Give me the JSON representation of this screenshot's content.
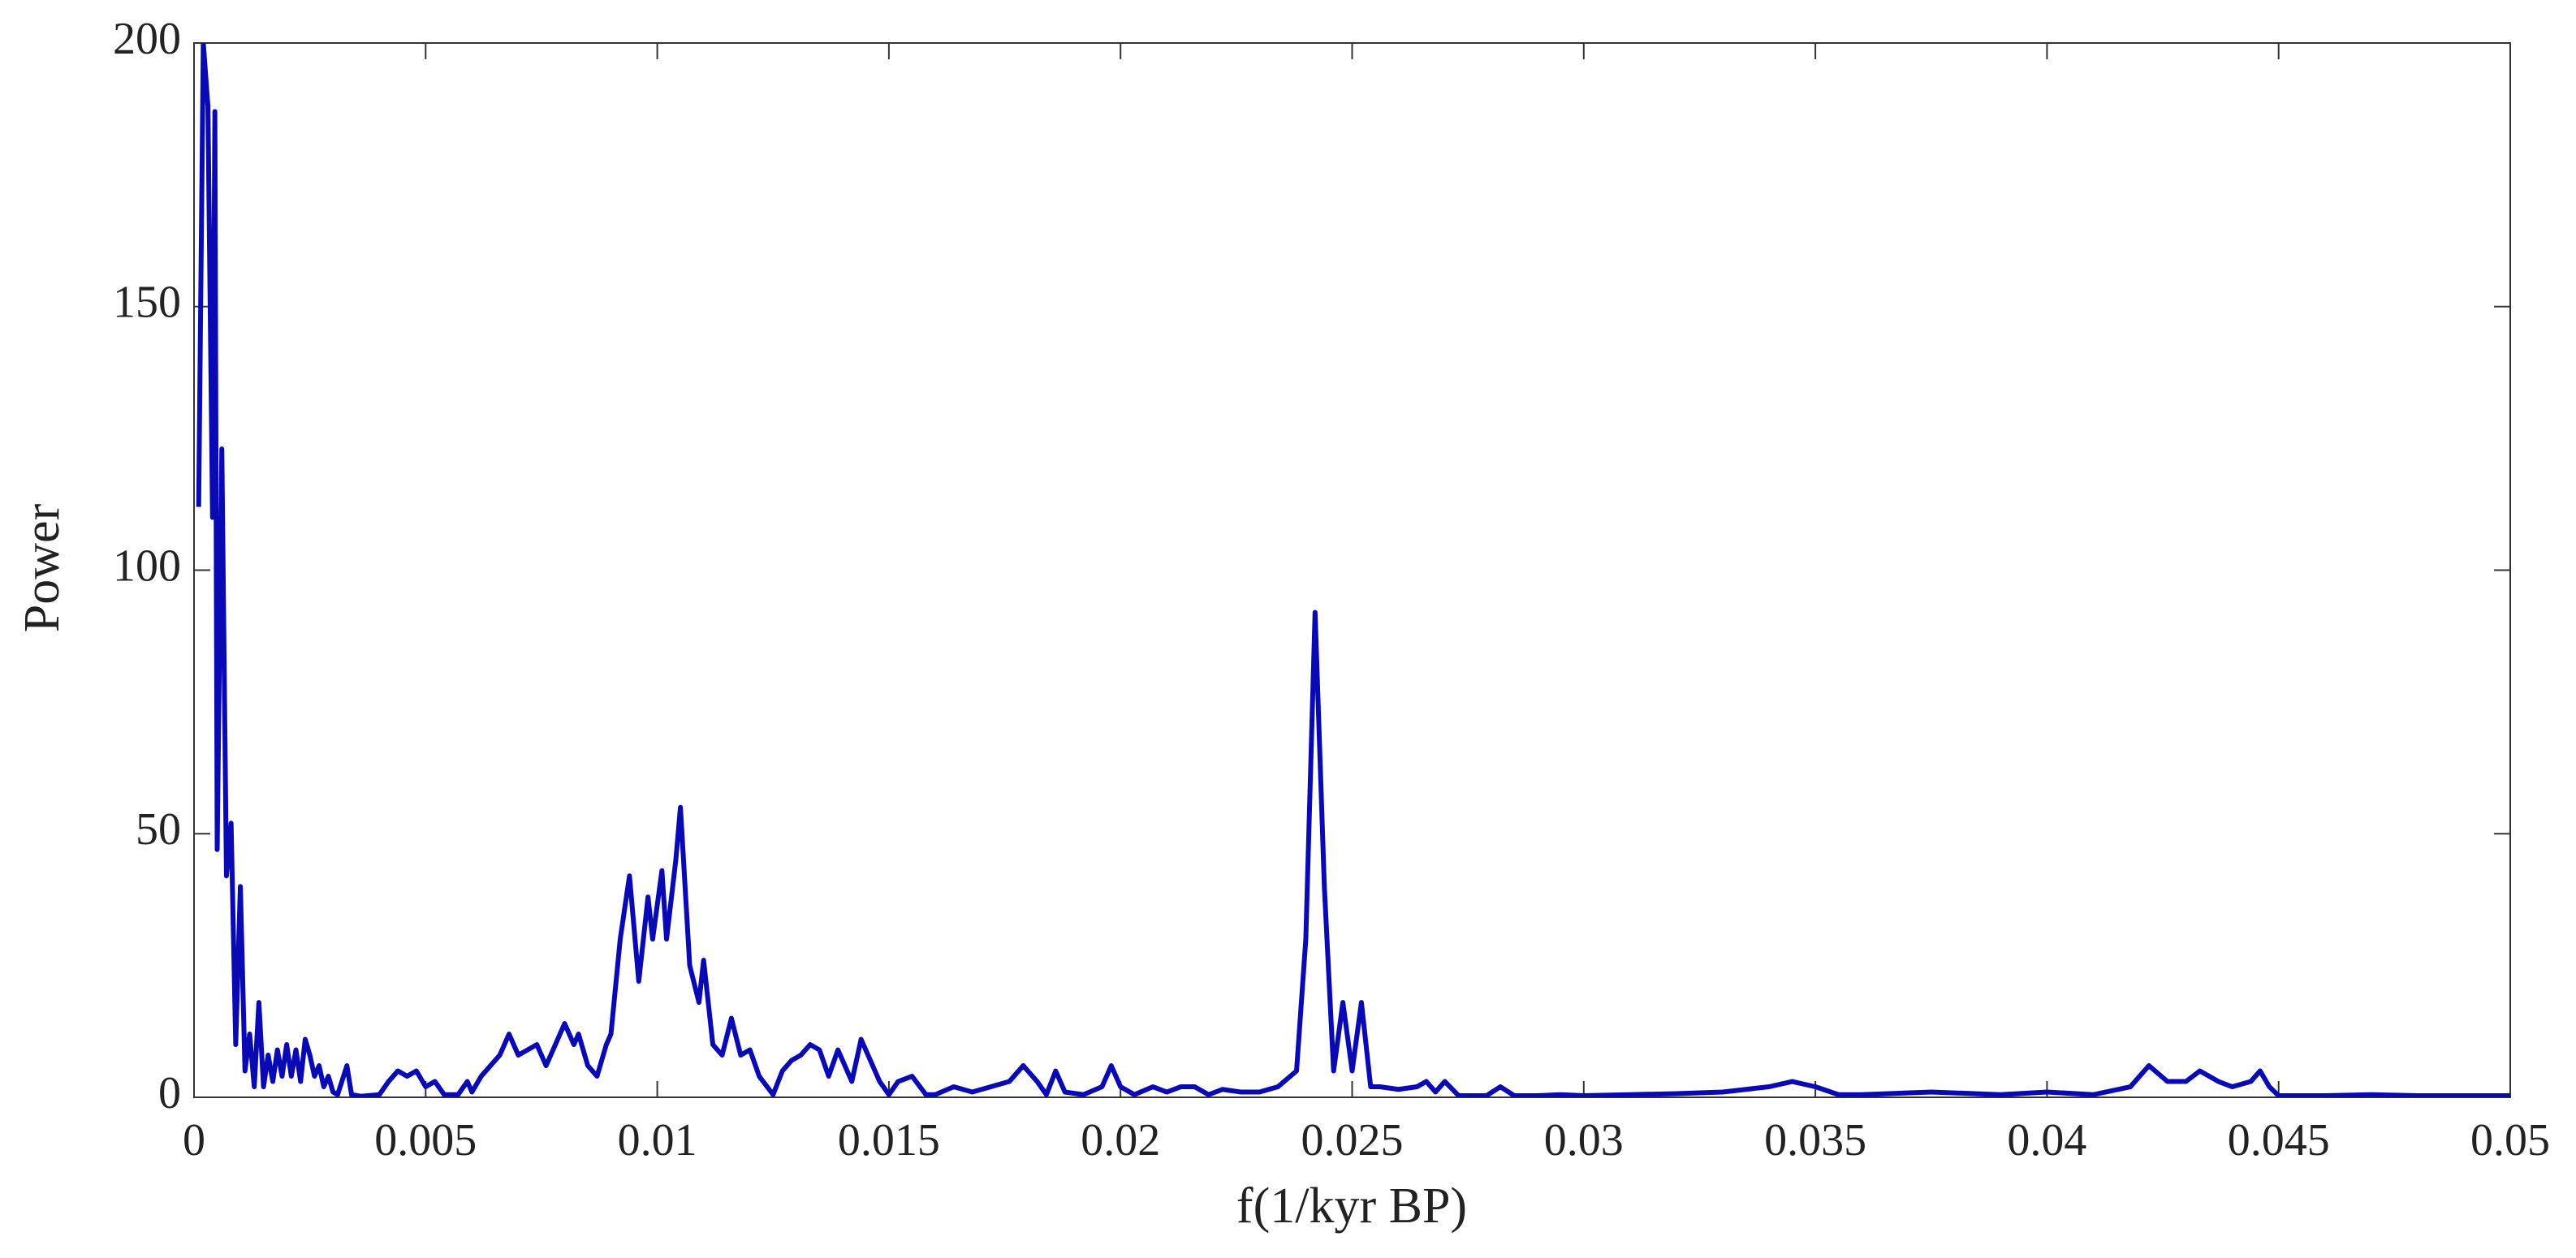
{
  "chart_data": {
    "type": "line",
    "xlabel": "f(1/kyr BP)",
    "ylabel": "Power",
    "color": "#0a0ab4",
    "xlim": [
      0,
      0.05
    ],
    "ylim": [
      0,
      200
    ],
    "xticks": [
      0,
      0.005,
      0.01,
      0.015,
      0.02,
      0.025,
      0.03,
      0.035,
      0.04,
      0.045,
      0.05
    ],
    "yticks": [
      0,
      50,
      100,
      150,
      200
    ],
    "x": [
      0.0001,
      0.0002,
      0.0003,
      0.0004,
      0.00045,
      0.0005,
      0.0006,
      0.0007,
      0.0008,
      0.0009,
      0.001,
      0.0011,
      0.0012,
      0.0013,
      0.0014,
      0.0015,
      0.0016,
      0.0017,
      0.0018,
      0.0019,
      0.002,
      0.0021,
      0.0022,
      0.0023,
      0.0024,
      0.0025,
      0.0026,
      0.0027,
      0.0028,
      0.0029,
      0.003,
      0.0031,
      0.0033,
      0.0034,
      0.0036,
      0.004,
      0.0042,
      0.0044,
      0.0046,
      0.0048,
      0.005,
      0.0052,
      0.0054,
      0.0057,
      0.0059,
      0.006,
      0.0062,
      0.0064,
      0.0066,
      0.0068,
      0.007,
      0.0072,
      0.0074,
      0.0076,
      0.0078,
      0.008,
      0.0082,
      0.0083,
      0.0085,
      0.0087,
      0.0089,
      0.009,
      0.0092,
      0.0094,
      0.0096,
      0.0098,
      0.0099,
      0.0101,
      0.0102,
      0.0104,
      0.0105,
      0.0107,
      0.0109,
      0.011,
      0.0112,
      0.0114,
      0.0116,
      0.0118,
      0.012,
      0.0122,
      0.0125,
      0.0127,
      0.0129,
      0.0131,
      0.0133,
      0.0135,
      0.0137,
      0.0139,
      0.0141,
      0.0142,
      0.0144,
      0.0146,
      0.0148,
      0.015,
      0.0152,
      0.0155,
      0.0158,
      0.016,
      0.0164,
      0.0168,
      0.0172,
      0.0176,
      0.0179,
      0.0182,
      0.0184,
      0.0186,
      0.0188,
      0.0192,
      0.0196,
      0.0198,
      0.02,
      0.0203,
      0.0207,
      0.021,
      0.0213,
      0.0216,
      0.0219,
      0.0222,
      0.0226,
      0.023,
      0.0234,
      0.0238,
      0.024,
      0.0242,
      0.0244,
      0.0246,
      0.0248,
      0.025,
      0.0252,
      0.0254,
      0.0256,
      0.026,
      0.0264,
      0.0266,
      0.0268,
      0.027,
      0.0273,
      0.0279,
      0.0282,
      0.0285,
      0.029,
      0.0295,
      0.03,
      0.031,
      0.032,
      0.033,
      0.0335,
      0.034,
      0.0345,
      0.035,
      0.0355,
      0.036,
      0.0375,
      0.039,
      0.04,
      0.041,
      0.0418,
      0.0422,
      0.0426,
      0.043,
      0.0433,
      0.0437,
      0.044,
      0.0444,
      0.0446,
      0.0448,
      0.045,
      0.046,
      0.047,
      0.048,
      0.049,
      0.05
    ],
    "values": [
      112,
      200,
      188,
      110,
      187,
      47,
      123,
      42,
      52,
      10,
      40,
      5,
      12,
      2,
      18,
      2,
      8,
      3,
      9,
      4,
      10,
      4,
      9,
      3,
      11,
      8,
      4,
      6,
      2,
      4,
      1,
      0.5,
      6,
      0.5,
      0.2,
      0.5,
      3,
      5,
      4,
      5,
      2,
      3,
      0.5,
      0.5,
      3,
      1,
      4,
      6,
      8,
      12,
      8,
      9,
      10,
      6,
      10,
      14,
      10,
      12,
      6,
      4,
      10,
      12,
      30,
      42,
      22,
      38,
      30,
      43,
      30,
      45,
      55,
      25,
      18,
      26,
      10,
      8,
      15,
      8,
      9,
      4,
      0.5,
      5,
      7,
      8,
      10,
      9,
      4,
      9,
      5,
      3,
      11,
      7,
      3,
      0.5,
      3,
      4,
      0.5,
      0.5,
      2,
      1,
      2,
      3,
      6,
      3,
      0.5,
      5,
      1,
      0.5,
      2,
      6,
      2,
      0.5,
      2,
      1,
      2,
      2,
      0.5,
      1.5,
      1,
      1,
      2,
      5,
      30,
      92,
      40,
      5,
      18,
      5,
      18,
      2,
      2,
      1.5,
      2,
      3,
      1,
      3,
      0.3,
      0.3,
      2,
      0.3,
      0.3,
      0.5,
      0.3,
      0.5,
      0.7,
      1,
      1.5,
      2,
      3,
      2,
      0.5,
      0.5,
      1,
      0.5,
      1,
      0.5,
      2,
      6,
      3,
      3,
      5,
      3,
      2,
      3,
      5,
      2,
      0.3,
      0.3,
      0.5,
      0.3,
      0.3,
      0.3
    ]
  }
}
